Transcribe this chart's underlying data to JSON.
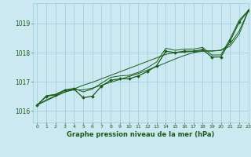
{
  "title": "Graphe pression niveau de la mer (hPa)",
  "bg_color": "#cce8f0",
  "grid_color": "#99cce0",
  "line_color": "#1a5c1a",
  "xlim": [
    -0.5,
    23
  ],
  "ylim": [
    1015.6,
    1019.7
  ],
  "yticks": [
    1016,
    1017,
    1018,
    1019
  ],
  "xticks": [
    0,
    1,
    2,
    3,
    4,
    5,
    6,
    7,
    8,
    9,
    10,
    11,
    12,
    13,
    14,
    15,
    16,
    17,
    18,
    19,
    20,
    21,
    22,
    23
  ],
  "series_main": [
    1016.2,
    1016.5,
    1016.55,
    1016.7,
    1016.75,
    1016.45,
    1016.5,
    1016.85,
    1017.05,
    1017.1,
    1017.1,
    1017.2,
    1017.35,
    1017.55,
    1018.05,
    1018.0,
    1018.05,
    1018.05,
    1018.1,
    1017.85,
    1017.85,
    1018.4,
    1019.05,
    1019.45
  ],
  "series_smooth": [
    1016.2,
    1016.38,
    1016.52,
    1016.65,
    1016.72,
    1016.72,
    1016.78,
    1016.88,
    1016.98,
    1017.08,
    1017.18,
    1017.28,
    1017.4,
    1017.52,
    1017.65,
    1017.78,
    1017.9,
    1018.0,
    1018.05,
    1018.05,
    1018.08,
    1018.22,
    1018.65,
    1019.45
  ],
  "series_straight": [
    1016.2,
    1016.35,
    1016.5,
    1016.64,
    1016.75,
    1016.88,
    1016.98,
    1017.1,
    1017.22,
    1017.34,
    1017.46,
    1017.58,
    1017.7,
    1017.82,
    1017.94,
    1018.0,
    1018.02,
    1018.04,
    1018.06,
    1018.06,
    1018.08,
    1018.3,
    1018.75,
    1019.45
  ],
  "series_upper": [
    1016.2,
    1016.52,
    1016.57,
    1016.72,
    1016.77,
    1016.65,
    1016.75,
    1016.95,
    1017.15,
    1017.2,
    1017.22,
    1017.32,
    1017.48,
    1017.68,
    1018.15,
    1018.08,
    1018.12,
    1018.12,
    1018.18,
    1017.92,
    1017.92,
    1018.48,
    1019.12,
    1019.45
  ]
}
